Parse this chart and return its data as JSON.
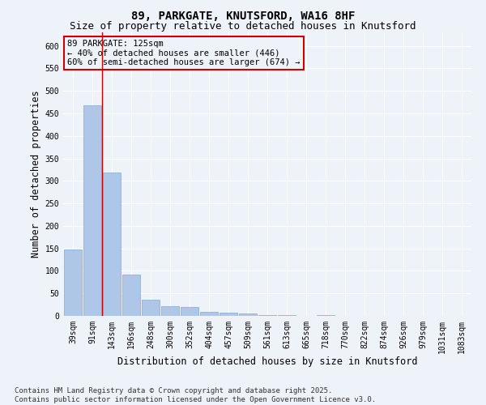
{
  "title_line1": "89, PARKGATE, KNUTSFORD, WA16 8HF",
  "title_line2": "Size of property relative to detached houses in Knutsford",
  "xlabel": "Distribution of detached houses by size in Knutsford",
  "ylabel": "Number of detached properties",
  "categories": [
    "39sqm",
    "91sqm",
    "143sqm",
    "196sqm",
    "248sqm",
    "300sqm",
    "352sqm",
    "404sqm",
    "457sqm",
    "509sqm",
    "561sqm",
    "613sqm",
    "665sqm",
    "718sqm",
    "770sqm",
    "822sqm",
    "874sqm",
    "926sqm",
    "979sqm",
    "1031sqm",
    "1083sqm"
  ],
  "values": [
    148,
    468,
    318,
    92,
    36,
    21,
    20,
    9,
    7,
    5,
    2,
    1,
    0,
    1,
    0,
    0,
    0,
    0,
    0,
    0,
    0
  ],
  "bar_color": "#aec6e8",
  "bar_edge_color": "#7aadd4",
  "vline_x_idx": 1.5,
  "vline_color": "#cc0000",
  "annotation_text": "89 PARKGATE: 125sqm\n← 40% of detached houses are smaller (446)\n60% of semi-detached houses are larger (674) →",
  "annotation_box_color": "#cc0000",
  "ylim": [
    0,
    630
  ],
  "yticks": [
    0,
    50,
    100,
    150,
    200,
    250,
    300,
    350,
    400,
    450,
    500,
    550,
    600
  ],
  "footnote": "Contains HM Land Registry data © Crown copyright and database right 2025.\nContains public sector information licensed under the Open Government Licence v3.0.",
  "bg_color": "#eef2f9",
  "grid_color": "#ffffff",
  "title_fontsize": 10,
  "subtitle_fontsize": 9,
  "label_fontsize": 8.5,
  "tick_fontsize": 7,
  "annot_fontsize": 7.5,
  "footnote_fontsize": 6.5
}
